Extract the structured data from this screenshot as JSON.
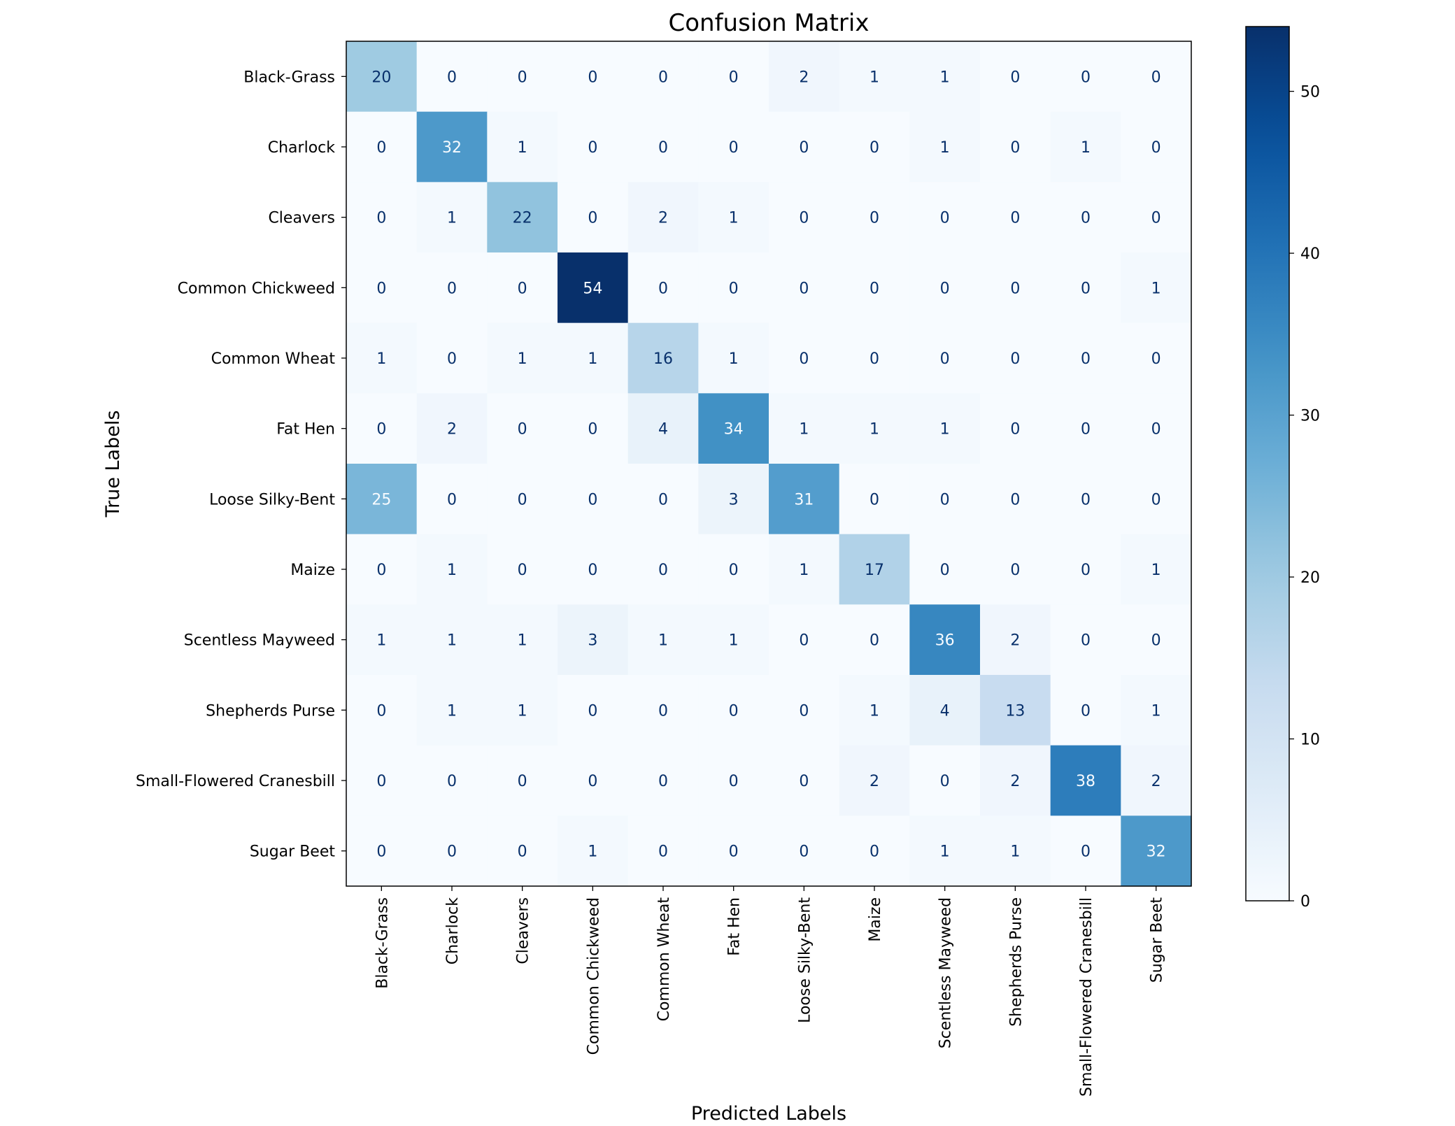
{
  "chart_data": {
    "type": "heatmap",
    "title": "Confusion Matrix",
    "xlabel": "Predicted Labels",
    "ylabel": "True Labels",
    "x_categories": [
      "Black-Grass",
      "Charlock",
      "Cleavers",
      "Common Chickweed",
      "Common Wheat",
      "Fat Hen",
      "Loose Silky-Bent",
      "Maize",
      "Scentless Mayweed",
      "Shepherds Purse",
      "Small-Flowered Cranesbill",
      "Sugar Beet"
    ],
    "y_categories": [
      "Black-Grass",
      "Charlock",
      "Cleavers",
      "Common Chickweed",
      "Common Wheat",
      "Fat Hen",
      "Loose Silky-Bent",
      "Maize",
      "Scentless Mayweed",
      "Shepherds Purse",
      "Small-Flowered Cranesbill",
      "Sugar Beet"
    ],
    "values": [
      [
        20,
        0,
        0,
        0,
        0,
        0,
        2,
        1,
        1,
        0,
        0,
        0
      ],
      [
        0,
        32,
        1,
        0,
        0,
        0,
        0,
        0,
        1,
        0,
        1,
        0
      ],
      [
        0,
        1,
        22,
        0,
        2,
        1,
        0,
        0,
        0,
        0,
        0,
        0
      ],
      [
        0,
        0,
        0,
        54,
        0,
        0,
        0,
        0,
        0,
        0,
        0,
        1
      ],
      [
        1,
        0,
        1,
        1,
        16,
        1,
        0,
        0,
        0,
        0,
        0,
        0
      ],
      [
        0,
        2,
        0,
        0,
        4,
        34,
        1,
        1,
        1,
        0,
        0,
        0
      ],
      [
        25,
        0,
        0,
        0,
        0,
        3,
        31,
        0,
        0,
        0,
        0,
        0
      ],
      [
        0,
        1,
        0,
        0,
        0,
        0,
        1,
        17,
        0,
        0,
        0,
        1
      ],
      [
        1,
        1,
        1,
        3,
        1,
        1,
        0,
        0,
        36,
        2,
        0,
        0
      ],
      [
        0,
        1,
        1,
        0,
        0,
        0,
        0,
        1,
        4,
        13,
        0,
        1
      ],
      [
        0,
        0,
        0,
        0,
        0,
        0,
        0,
        2,
        0,
        2,
        38,
        2
      ],
      [
        0,
        0,
        0,
        1,
        0,
        0,
        0,
        0,
        1,
        1,
        0,
        32
      ]
    ],
    "colormap": "Blues",
    "colorbar": {
      "range": [
        0,
        54
      ],
      "ticks": [
        0,
        10,
        20,
        30,
        40,
        50
      ]
    },
    "colors": {
      "low": "#f7fbff",
      "high": "#08306b",
      "text_on_light": "#08306b",
      "text_on_dark": "#f7fbff"
    }
  }
}
